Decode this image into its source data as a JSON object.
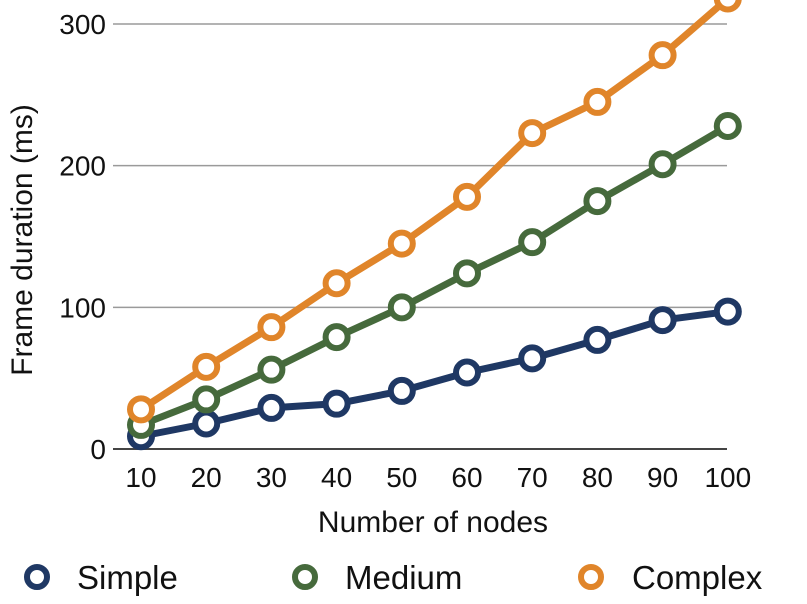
{
  "chart_data": {
    "type": "line",
    "title": "",
    "xlabel": "Number of nodes",
    "ylabel": "Frame duration (ms)",
    "categories": [
      "10",
      "20",
      "30",
      "40",
      "50",
      "60",
      "70",
      "80",
      "90",
      "100"
    ],
    "ylim": [
      0,
      300
    ],
    "yticks": [
      "0",
      "100",
      "200",
      "300"
    ],
    "grid": true,
    "legend_position": "bottom",
    "series": [
      {
        "name": "Simple",
        "color": "#1f3864",
        "values": [
          9,
          18,
          29,
          32,
          41,
          54,
          64,
          77,
          91,
          97
        ]
      },
      {
        "name": "Medium",
        "color": "#466a3c",
        "values": [
          17,
          35,
          56,
          79,
          100,
          124,
          146,
          175,
          201,
          228
        ]
      },
      {
        "name": "Complex",
        "color": "#e0852a",
        "values": [
          28,
          58,
          86,
          117,
          145,
          178,
          223,
          245,
          278,
          318
        ]
      }
    ]
  }
}
